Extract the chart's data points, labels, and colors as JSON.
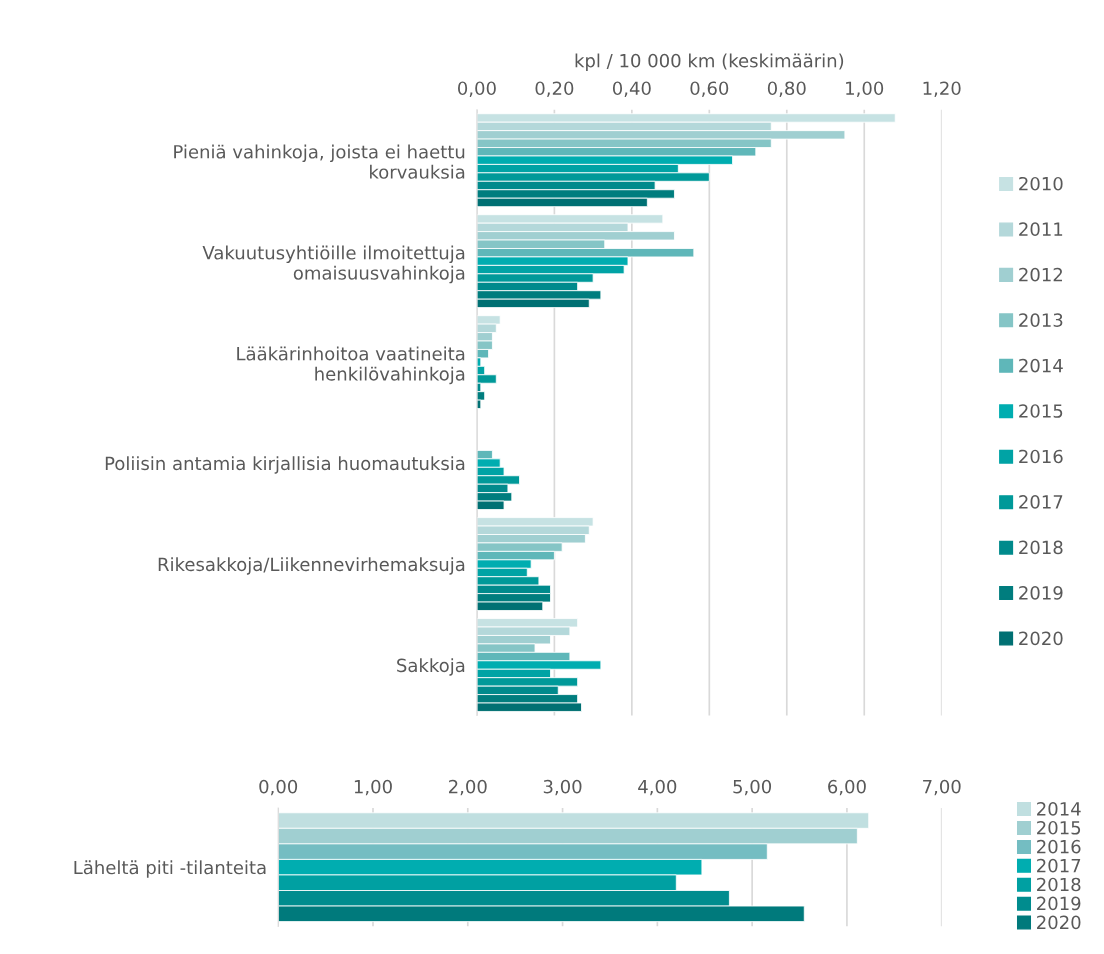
{
  "chart_data": [
    {
      "type": "bar",
      "orientation": "horizontal",
      "xlabel": "kpl / 10 000 km (keskimäärin)",
      "categories": [
        "Pieniä vahinkoja, joista ei haettu\nkorvauksia",
        "Vakuutusyhtiöille ilmoitettuja\nomaisuusvahinkoja",
        "Lääkärinhoitoa vaatineita\nhenkilövahinkoja",
        "Poliisin antamia kirjallisia huomautuksia",
        "Rikesakkoja/Liikennevirhemaksuja",
        "Sakkoja"
      ],
      "series": [
        {
          "name": "2010",
          "color": "#c6e2e3",
          "values": [
            1.08,
            0.48,
            0.06,
            null,
            0.3,
            0.26
          ]
        },
        {
          "name": "2011",
          "color": "#b4d8da",
          "values": [
            0.76,
            0.39,
            0.05,
            null,
            0.29,
            0.24
          ]
        },
        {
          "name": "2012",
          "color": "#a0cfd1",
          "values": [
            0.95,
            0.51,
            0.04,
            null,
            0.28,
            0.19
          ]
        },
        {
          "name": "2013",
          "color": "#85c5c6",
          "values": [
            0.76,
            0.33,
            0.04,
            null,
            0.22,
            0.15
          ]
        },
        {
          "name": "2014",
          "color": "#5fb7b9",
          "values": [
            0.72,
            0.56,
            0.03,
            0.04,
            0.2,
            0.24
          ]
        },
        {
          "name": "2015",
          "color": "#00adb0",
          "values": [
            0.66,
            0.39,
            0.01,
            0.06,
            0.14,
            0.32
          ]
        },
        {
          "name": "2016",
          "color": "#00a3a5",
          "values": [
            0.52,
            0.38,
            0.02,
            0.07,
            0.13,
            0.19
          ]
        },
        {
          "name": "2017",
          "color": "#009999",
          "values": [
            0.6,
            0.3,
            0.05,
            0.11,
            0.16,
            0.26
          ]
        },
        {
          "name": "2018",
          "color": "#008a8c",
          "values": [
            0.46,
            0.26,
            0.01,
            0.08,
            0.19,
            0.21
          ]
        },
        {
          "name": "2019",
          "color": "#007d7e",
          "values": [
            0.51,
            0.32,
            0.02,
            0.09,
            0.19,
            0.26
          ]
        },
        {
          "name": "2020",
          "color": "#007073",
          "values": [
            0.44,
            0.29,
            0.01,
            0.07,
            0.17,
            0.27
          ]
        }
      ],
      "xlim": [
        0,
        1.2
      ],
      "xticks": [
        {
          "value": 0,
          "label": "0,00"
        },
        {
          "value": 0.2,
          "label": "0,20"
        },
        {
          "value": 0.4,
          "label": "0,40"
        },
        {
          "value": 0.6,
          "label": "0,60"
        },
        {
          "value": 0.8,
          "label": "0,80"
        },
        {
          "value": 1.0,
          "label": "1,00"
        },
        {
          "value": 1.2,
          "label": "1,20"
        }
      ],
      "grid": "x",
      "legend": "right"
    },
    {
      "type": "bar",
      "orientation": "horizontal",
      "categories": [
        "Läheltä piti -tilanteita"
      ],
      "series": [
        {
          "name": "2014",
          "color": "#c0dfe0",
          "values": [
            6.23
          ]
        },
        {
          "name": "2015",
          "color": "#a0cfd1",
          "values": [
            6.11
          ]
        },
        {
          "name": "2016",
          "color": "#74bdc2",
          "values": [
            5.16
          ]
        },
        {
          "name": "2017",
          "color": "#00adb0",
          "values": [
            4.47
          ]
        },
        {
          "name": "2018",
          "color": "#00a0a2",
          "values": [
            4.2
          ]
        },
        {
          "name": "2019",
          "color": "#008c8e",
          "values": [
            4.76
          ]
        },
        {
          "name": "2020",
          "color": "#007a7c",
          "values": [
            5.55
          ]
        }
      ],
      "xlim": [
        0,
        7
      ],
      "xticks": [
        {
          "value": 0,
          "label": "0,00"
        },
        {
          "value": 1,
          "label": "1,00"
        },
        {
          "value": 2,
          "label": "2,00"
        },
        {
          "value": 3,
          "label": "3,00"
        },
        {
          "value": 4,
          "label": "4,00"
        },
        {
          "value": 5,
          "label": "5,00"
        },
        {
          "value": 6,
          "label": "6,00"
        },
        {
          "value": 7,
          "label": "7,00"
        }
      ],
      "grid": "x",
      "legend": "right"
    }
  ]
}
